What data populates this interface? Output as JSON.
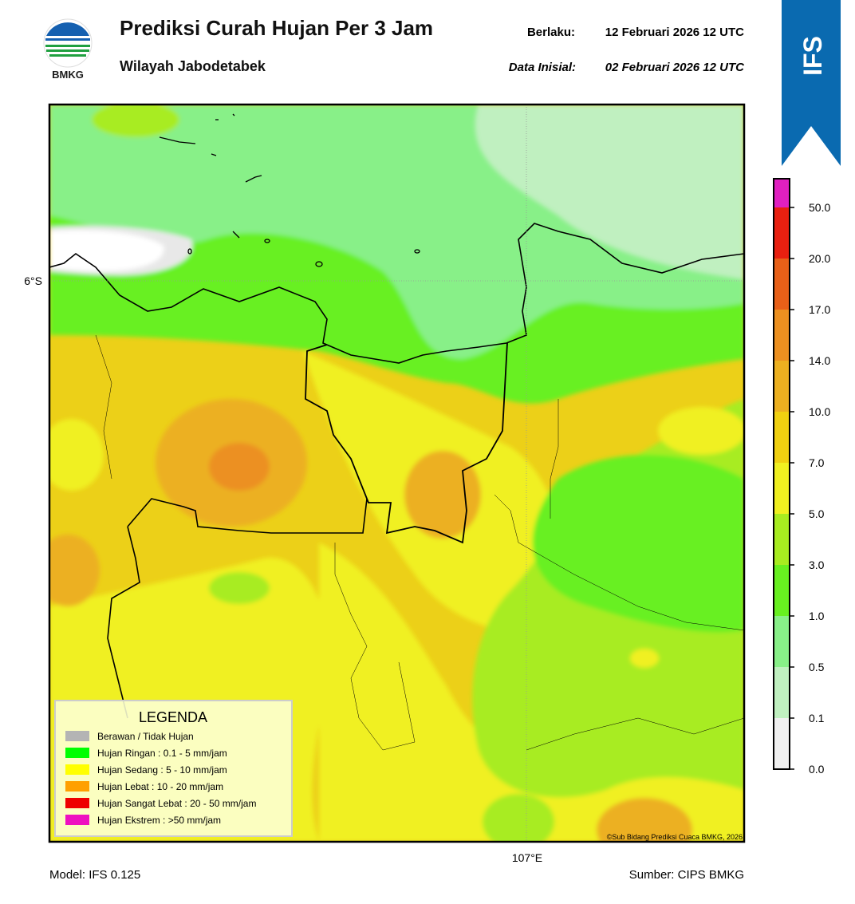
{
  "header": {
    "logo_text": "BMKG",
    "title": "Prediksi Curah Hujan Per 3 Jam",
    "subtitle": "Wilayah Jabodetabek",
    "valid_label": "Berlaku:",
    "valid_value": "12 Februari 2026 12 UTC",
    "init_label": "Data Inisial:",
    "init_value": "02 Februari 2026 12 UTC"
  },
  "badge": "IFS",
  "map": {
    "lat_label": "6°S",
    "lon_label": "107°E",
    "credit": "©Sub Bidang Prediksi Cuaca BMKG, 2026"
  },
  "legend": {
    "title": "LEGENDA",
    "items": [
      {
        "label": "Berawan / Tidak Hujan",
        "color": "#b4b4b4"
      },
      {
        "label": "Hujan Ringan : 0.1 - 5 mm/jam",
        "color": "#00ff00"
      },
      {
        "label": "Hujan Sedang : 5 - 10 mm/jam",
        "color": "#ffff00"
      },
      {
        "label": "Hujan Lebat : 10 - 20 mm/jam",
        "color": "#ffa000"
      },
      {
        "label": "Hujan Sangat Lebat : 20 - 50 mm/jam",
        "color": "#ee0000"
      },
      {
        "label": "Hujan Ekstrem : >50 mm/jam",
        "color": "#ee10c0"
      }
    ]
  },
  "colorbar": {
    "ticks": [
      {
        "value": 0,
        "label": "0.0"
      },
      0.1,
      0.5,
      {
        "value": 1,
        "label": "1.0"
      },
      {
        "value": 3,
        "label": "3.0"
      },
      {
        "value": 5,
        "label": "5.0"
      },
      {
        "value": 7,
        "label": "7.0"
      },
      {
        "value": 10,
        "label": "10.0"
      },
      {
        "value": 14,
        "label": "14.0"
      },
      {
        "value": 17,
        "label": "17.0"
      },
      {
        "value": 20,
        "label": "20.0"
      },
      {
        "value": 50,
        "label": "50.0"
      }
    ],
    "colors": [
      "#f0f0f0",
      "#c0f0c0",
      "#88f088",
      "#68f020",
      "#a8ec20",
      "#f0f020",
      "#f0d010",
      "#ecb020",
      "#ec9020",
      "#e86018",
      "#e82010",
      "#e020c0"
    ]
  },
  "footer": {
    "model": "Model: IFS 0.125",
    "source": "Sumber: CIPS BMKG"
  }
}
